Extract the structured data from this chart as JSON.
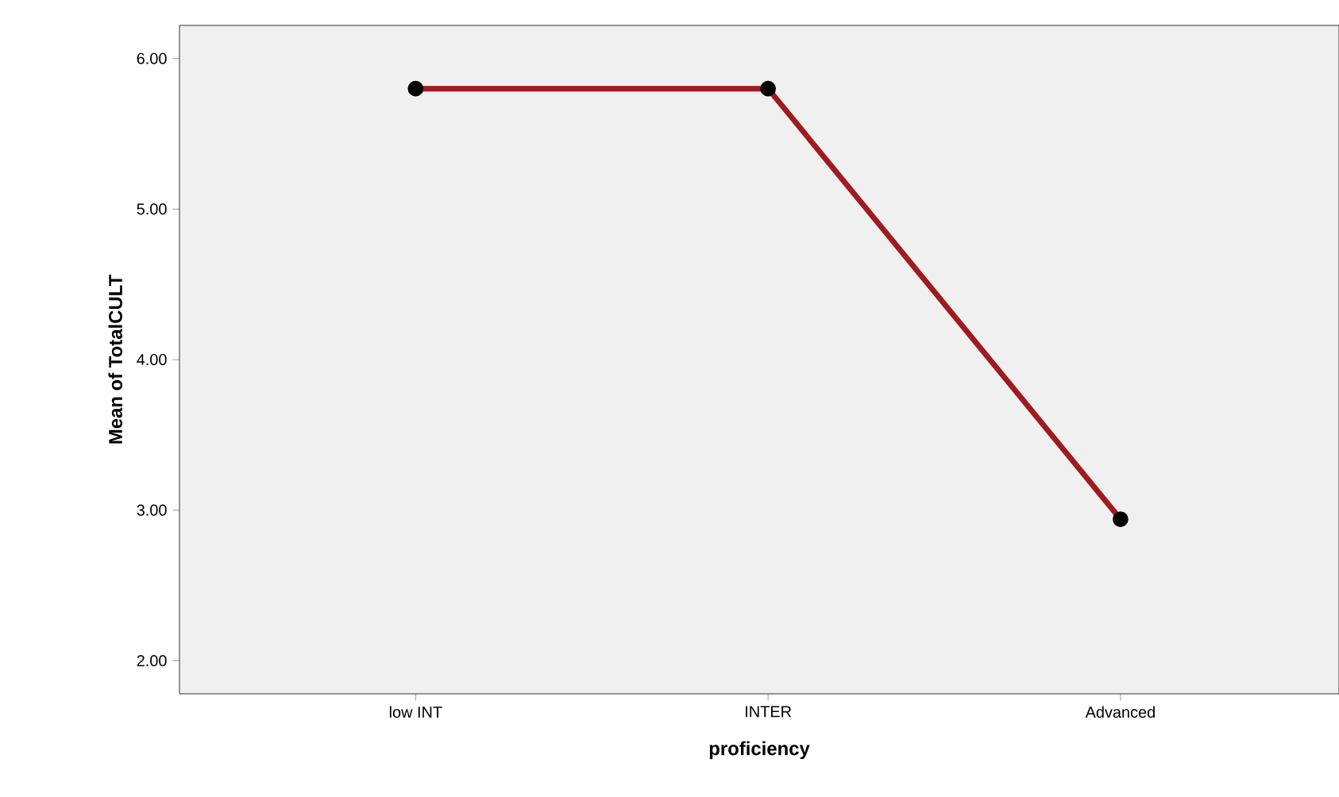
{
  "chart_data": {
    "type": "line",
    "xlabel": "proficiency",
    "ylabel": "Mean of TotalCULT",
    "categories": [
      "low INT",
      "INTER",
      "Advanced"
    ],
    "series": [
      {
        "color": "#9e1b20",
        "values": [
          5.8,
          5.8,
          2.94
        ]
      }
    ],
    "ylim": [
      1.78,
      6.22
    ],
    "yticks": [
      {
        "value": 2,
        "label": "2.00"
      },
      {
        "value": 3,
        "label": "3.00"
      },
      {
        "value": 4,
        "label": "4.00"
      },
      {
        "value": 5,
        "label": "5.00"
      },
      {
        "value": 6,
        "label": "6.00"
      }
    ],
    "grid": false,
    "marker": "circle",
    "line_style": "solid"
  }
}
